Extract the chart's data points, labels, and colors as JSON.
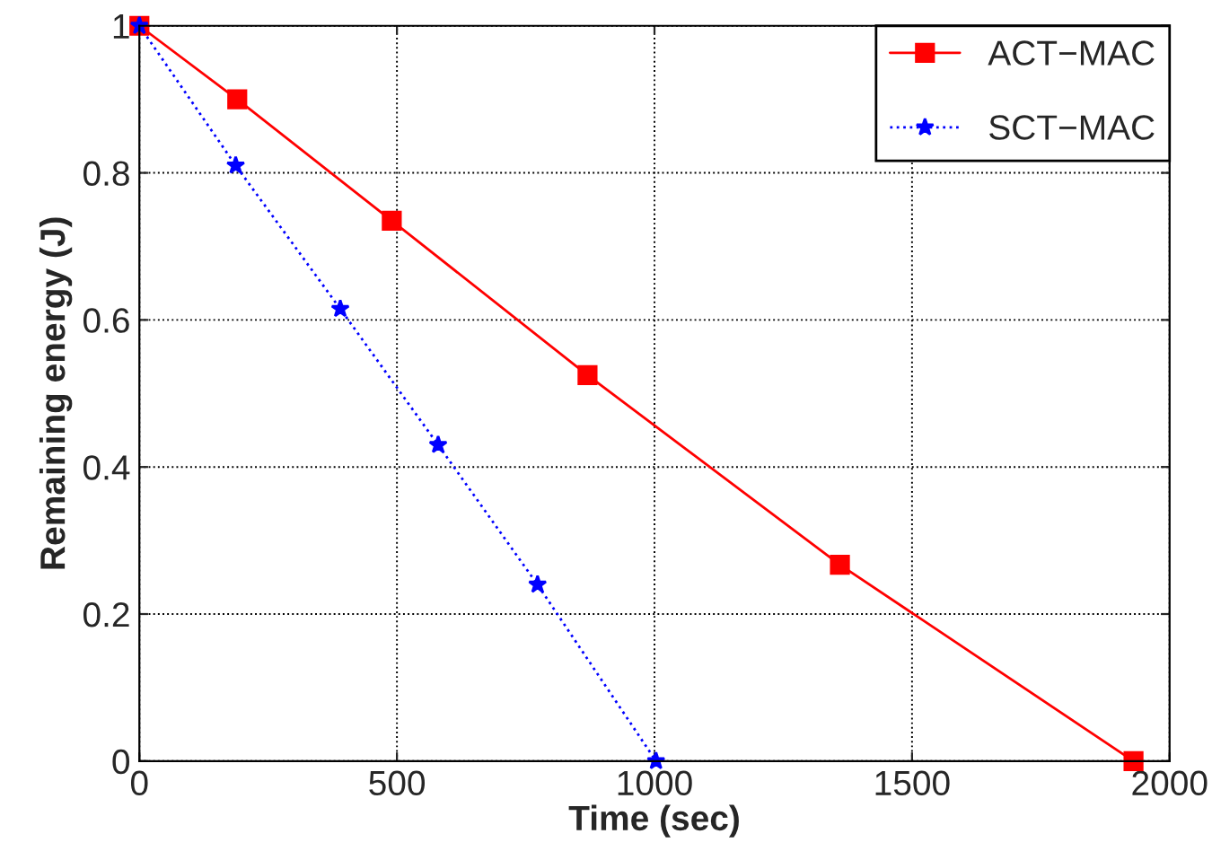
{
  "chart_data": {
    "type": "line",
    "xlabel": "Time (sec)",
    "ylabel": "Remaining energy (J)",
    "xlim": [
      0,
      2000
    ],
    "ylim": [
      0,
      1
    ],
    "xticks": [
      0,
      500,
      1000,
      1500,
      2000
    ],
    "yticks": [
      0,
      0.2,
      0.4,
      0.6,
      0.8,
      1
    ],
    "grid": true,
    "legend": "top right",
    "series": [
      {
        "name": "ACT−MAC",
        "color": "#ff0000",
        "marker": "square",
        "line_style": "solid",
        "x": [
          0,
          190,
          490,
          870,
          1360,
          1930
        ],
        "values": [
          1,
          0.9,
          0.735,
          0.525,
          0.267,
          0
        ]
      },
      {
        "name": "SCT−MAC",
        "color": "#0000ff",
        "marker": "star",
        "line_style": "dotted",
        "x": [
          0,
          187,
          390,
          580,
          773,
          1003
        ],
        "values": [
          1,
          0.81,
          0.615,
          0.43,
          0.24,
          0
        ]
      }
    ]
  }
}
